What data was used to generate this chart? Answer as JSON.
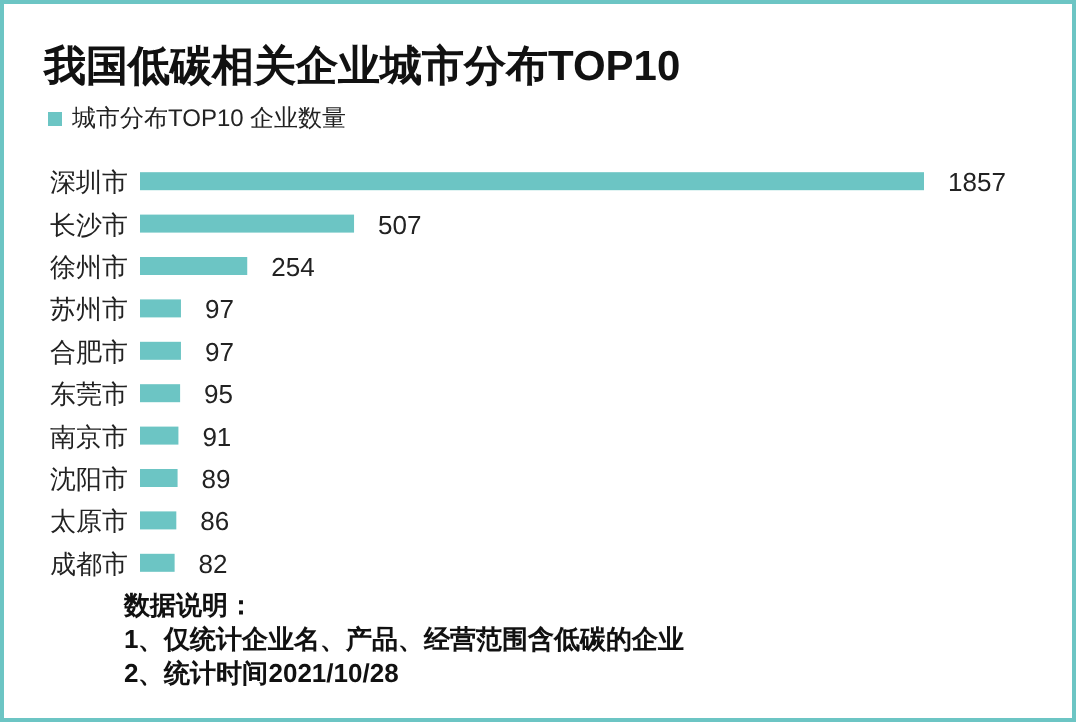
{
  "chart_data": {
    "type": "bar",
    "orientation": "horizontal",
    "title": "我国低碳相关企业城市分布TOP10",
    "categories": [
      "深圳市",
      "长沙市",
      "徐州市",
      "苏州市",
      "合肥市",
      "东莞市",
      "南京市",
      "沈阳市",
      "太原市",
      "成都市"
    ],
    "series": [
      {
        "name": "城市分布TOP10 企业数量",
        "color": "#6cc5c4",
        "values": [
          1857,
          507,
          254,
          97,
          97,
          95,
          91,
          89,
          86,
          82
        ]
      }
    ],
    "data_labels": true,
    "legend": "top left",
    "annotations": [
      "数据说明：",
      "1、仅统计企业名、产品、经营范围含低碳的企业",
      "2、统计时间2021/10/28"
    ]
  }
}
